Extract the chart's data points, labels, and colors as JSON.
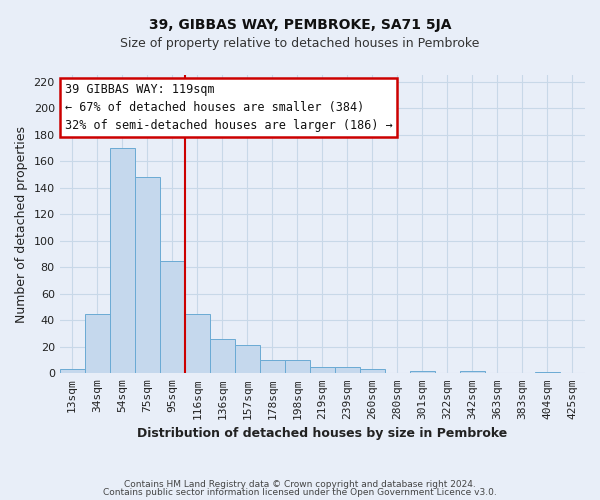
{
  "title": "39, GIBBAS WAY, PEMBROKE, SA71 5JA",
  "subtitle": "Size of property relative to detached houses in Pembroke",
  "xlabel": "Distribution of detached houses by size in Pembroke",
  "ylabel": "Number of detached properties",
  "footer_line1": "Contains HM Land Registry data © Crown copyright and database right 2024.",
  "footer_line2": "Contains public sector information licensed under the Open Government Licence v3.0.",
  "bar_labels": [
    "13sqm",
    "34sqm",
    "54sqm",
    "75sqm",
    "95sqm",
    "116sqm",
    "136sqm",
    "157sqm",
    "178sqm",
    "198sqm",
    "219sqm",
    "239sqm",
    "260sqm",
    "280sqm",
    "301sqm",
    "322sqm",
    "342sqm",
    "363sqm",
    "383sqm",
    "404sqm",
    "425sqm"
  ],
  "bar_heights": [
    3,
    45,
    170,
    148,
    85,
    45,
    26,
    21,
    10,
    10,
    5,
    5,
    3,
    0,
    2,
    0,
    2,
    0,
    0,
    1,
    0
  ],
  "bar_color": "#c5d8ed",
  "bar_edge_color": "#6aaad4",
  "vline_position": 4.5,
  "vline_color": "#cc0000",
  "vline_linewidth": 1.5,
  "ylim": [
    0,
    225
  ],
  "yticks": [
    0,
    20,
    40,
    60,
    80,
    100,
    120,
    140,
    160,
    180,
    200,
    220
  ],
  "annotation_title": "39 GIBBAS WAY: 119sqm",
  "annotation_line1": "← 67% of detached houses are smaller (384)",
  "annotation_line2": "32% of semi-detached houses are larger (186) →",
  "annotation_box_facecolor": "#ffffff",
  "annotation_box_edgecolor": "#cc0000",
  "grid_color": "#c8d8e8",
  "background_color": "#e8eef8",
  "plot_background": "#e8eef8",
  "title_fontsize": 10,
  "subtitle_fontsize": 9,
  "annotation_fontsize": 8.5,
  "tick_fontsize": 8,
  "label_fontsize": 9,
  "footer_fontsize": 6.5
}
